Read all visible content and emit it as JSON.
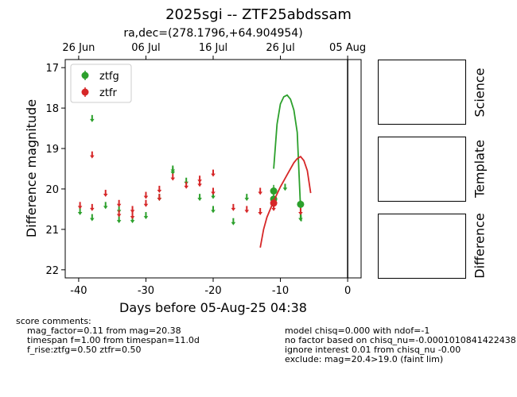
{
  "chart_data": {
    "type": "scatter",
    "title": "2025sgi -- ZTF25abdssam",
    "subtitle": "ra,dec=(278.1796,+64.904954)",
    "xlabel": "Days before 05-Aug-25 04:38",
    "ylabel": "Difference magnitude",
    "xlim": [
      -42,
      2
    ],
    "ylim": [
      22.2,
      16.8
    ],
    "y_inverted": true,
    "x_ticks": [
      -40,
      -30,
      -20,
      -10,
      0
    ],
    "y_ticks": [
      17,
      18,
      19,
      20,
      21,
      22
    ],
    "top_axis_ticks": [
      {
        "x": -40,
        "label": "26 Jun"
      },
      {
        "x": -30,
        "label": "06 Jul"
      },
      {
        "x": -20,
        "label": "16 Jul"
      },
      {
        "x": -10,
        "label": "26 Jul"
      },
      {
        "x": 0,
        "label": "05 Aug"
      }
    ],
    "legend_position": "top-left",
    "vertical_line_x": 0,
    "series": [
      {
        "name": "ztfg",
        "color": "#2ca02c",
        "upper_limits": [
          {
            "x": -39.8,
            "y": 20.55
          },
          {
            "x": -38.0,
            "y": 18.25
          },
          {
            "x": -38.0,
            "y": 20.7
          },
          {
            "x": -36.0,
            "y": 20.4
          },
          {
            "x": -34.0,
            "y": 20.5
          },
          {
            "x": -34.0,
            "y": 20.75
          },
          {
            "x": -32.0,
            "y": 20.75
          },
          {
            "x": -30.0,
            "y": 20.65
          },
          {
            "x": -28.0,
            "y": 20.2
          },
          {
            "x": -26.0,
            "y": 19.5
          },
          {
            "x": -26.0,
            "y": 19.55
          },
          {
            "x": -24.0,
            "y": 19.8
          },
          {
            "x": -22.0,
            "y": 20.2
          },
          {
            "x": -20.0,
            "y": 20.15
          },
          {
            "x": -20.0,
            "y": 20.5
          },
          {
            "x": -17.0,
            "y": 20.8
          },
          {
            "x": -15.0,
            "y": 20.2
          },
          {
            "x": -11.0,
            "y": 20.35
          },
          {
            "x": -9.3,
            "y": 19.95
          },
          {
            "x": -7.0,
            "y": 20.7
          }
        ],
        "detections": [
          {
            "x": -11.0,
            "y": 20.05,
            "err": 0.15
          },
          {
            "x": -11.0,
            "y": 20.25,
            "err": 0.15
          },
          {
            "x": -7.0,
            "y": 20.38,
            "err": 0.1
          }
        ],
        "model_curve": {
          "x": [
            -11.0,
            -10.5,
            -10.0,
            -9.5,
            -9.0,
            -8.5,
            -8.0,
            -7.5,
            -7.0,
            -6.9
          ],
          "y": [
            19.5,
            18.4,
            17.9,
            17.72,
            17.68,
            17.78,
            18.05,
            18.6,
            20.5,
            20.8
          ]
        }
      },
      {
        "name": "ztfr",
        "color": "#d62728",
        "upper_limits": [
          {
            "x": -39.8,
            "y": 20.4
          },
          {
            "x": -38.0,
            "y": 19.15
          },
          {
            "x": -38.0,
            "y": 20.45
          },
          {
            "x": -36.0,
            "y": 20.1
          },
          {
            "x": -34.0,
            "y": 20.35
          },
          {
            "x": -34.0,
            "y": 20.6
          },
          {
            "x": -32.0,
            "y": 20.5
          },
          {
            "x": -32.0,
            "y": 20.65
          },
          {
            "x": -30.0,
            "y": 20.15
          },
          {
            "x": -30.0,
            "y": 20.35
          },
          {
            "x": -28.0,
            "y": 20.0
          },
          {
            "x": -28.0,
            "y": 20.2
          },
          {
            "x": -26.0,
            "y": 19.7
          },
          {
            "x": -24.0,
            "y": 19.9
          },
          {
            "x": -22.0,
            "y": 19.75
          },
          {
            "x": -22.0,
            "y": 19.85
          },
          {
            "x": -20.0,
            "y": 19.6
          },
          {
            "x": -20.0,
            "y": 20.05
          },
          {
            "x": -17.0,
            "y": 20.45
          },
          {
            "x": -15.0,
            "y": 20.5
          },
          {
            "x": -13.0,
            "y": 20.05
          },
          {
            "x": -13.0,
            "y": 20.55
          },
          {
            "x": -11.0,
            "y": 20.45
          },
          {
            "x": -7.0,
            "y": 20.55
          }
        ],
        "detections": [
          {
            "x": -11.0,
            "y": 20.35,
            "err": 0.1
          }
        ],
        "model_curve": {
          "x": [
            -13.0,
            -12.5,
            -12.0,
            -11.0,
            -10.0,
            -9.0,
            -8.0,
            -7.5,
            -7.0,
            -6.5,
            -6.0,
            -5.5
          ],
          "y": [
            21.45,
            21.0,
            20.7,
            20.3,
            19.95,
            19.65,
            19.35,
            19.25,
            19.2,
            19.3,
            19.55,
            20.1
          ]
        }
      }
    ]
  },
  "panels": {
    "science_label": "Science",
    "template_label": "Template",
    "difference_label": "Difference"
  },
  "comments": {
    "header": "score comments:",
    "left_lines": [
      "mag_factor=0.11 from mag=20.38",
      "timespan f=1.00 from timespan=11.0d",
      "f_rise:ztfg=0.50 ztfr=0.50"
    ],
    "right_lines": [
      "model chisq=0.000 with ndof=-1",
      "no factor based on chisq_nu=-0.0001010841422438",
      "ignore interest 0.01 from chisq_nu -0.00",
      "exclude: mag=20.4>19.0 (faint lim)"
    ]
  }
}
